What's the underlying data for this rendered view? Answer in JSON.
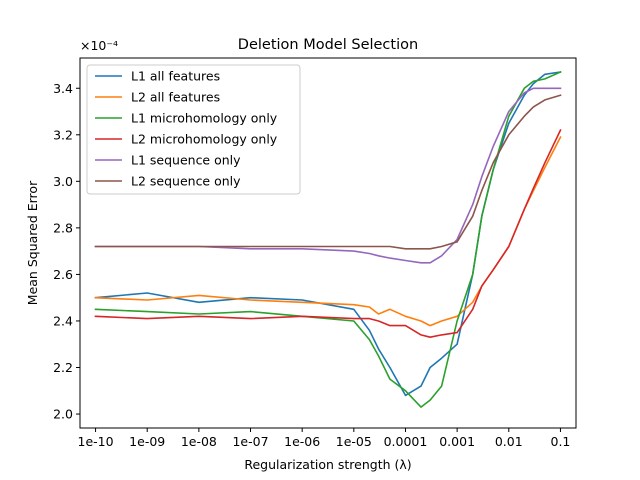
{
  "chart_data": {
    "type": "line",
    "title": "Deletion Model Selection",
    "xlabel": "Regularization strength (λ)",
    "ylabel": "Mean Squared Error",
    "y_offset_text": "×10⁻⁴",
    "x_scale": "log",
    "xlim": [
      5e-11,
      0.2
    ],
    "ylim": [
      1.94,
      3.53
    ],
    "x_ticks": [
      1e-10,
      1e-09,
      1e-08,
      1e-07,
      1e-06,
      1e-05,
      0.0001,
      0.001,
      0.01,
      0.1
    ],
    "x_tick_labels": [
      "1e-10",
      "1e-09",
      "1e-08",
      "1e-07",
      "1e-06",
      "1e-05",
      "0.0001",
      "0.001",
      "0.01",
      "0.1"
    ],
    "y_ticks": [
      2.0,
      2.2,
      2.4,
      2.6,
      2.8,
      3.0,
      3.2,
      3.4
    ],
    "y_tick_labels": [
      "2.0",
      "2.2",
      "2.4",
      "2.6",
      "2.8",
      "3.0",
      "3.2",
      "3.4"
    ],
    "grid": false,
    "legend_position": "top-left",
    "x": [
      1e-10,
      1e-09,
      1e-08,
      1e-07,
      1e-06,
      1e-05,
      2e-05,
      3e-05,
      5e-05,
      0.0001,
      0.0002,
      0.0003,
      0.0005,
      0.001,
      0.002,
      0.003,
      0.005,
      0.01,
      0.02,
      0.03,
      0.05,
      0.1
    ],
    "series": [
      {
        "name": "L1 all features",
        "color": "#1f77b4",
        "values": [
          2.5,
          2.52,
          2.48,
          2.5,
          2.49,
          2.45,
          2.36,
          2.28,
          2.2,
          2.08,
          2.12,
          2.2,
          2.24,
          2.3,
          2.6,
          2.85,
          3.05,
          3.25,
          3.37,
          3.42,
          3.46,
          3.47
        ]
      },
      {
        "name": "L2 all features",
        "color": "#ff7f0e",
        "values": [
          2.5,
          2.49,
          2.51,
          2.49,
          2.48,
          2.47,
          2.46,
          2.43,
          2.45,
          2.42,
          2.4,
          2.38,
          2.4,
          2.42,
          2.48,
          2.55,
          2.62,
          2.72,
          2.88,
          2.96,
          3.06,
          3.19
        ]
      },
      {
        "name": "L1 microhomology only",
        "color": "#2ca02c",
        "values": [
          2.45,
          2.44,
          2.43,
          2.44,
          2.42,
          2.4,
          2.32,
          2.25,
          2.15,
          2.1,
          2.03,
          2.06,
          2.12,
          2.4,
          2.6,
          2.85,
          3.05,
          3.28,
          3.4,
          3.43,
          3.44,
          3.47
        ]
      },
      {
        "name": "L2 microhomology only",
        "color": "#d62728",
        "values": [
          2.42,
          2.41,
          2.42,
          2.41,
          2.42,
          2.41,
          2.41,
          2.4,
          2.38,
          2.38,
          2.34,
          2.33,
          2.34,
          2.35,
          2.45,
          2.55,
          2.62,
          2.72,
          2.88,
          2.97,
          3.08,
          3.22
        ]
      },
      {
        "name": "L1 sequence only",
        "color": "#9467bd",
        "values": [
          2.72,
          2.72,
          2.72,
          2.71,
          2.71,
          2.7,
          2.69,
          2.68,
          2.67,
          2.66,
          2.65,
          2.65,
          2.68,
          2.75,
          2.9,
          3.02,
          3.15,
          3.3,
          3.38,
          3.4,
          3.4,
          3.4
        ]
      },
      {
        "name": "L2 sequence only",
        "color": "#8c564b",
        "values": [
          2.72,
          2.72,
          2.72,
          2.72,
          2.72,
          2.72,
          2.72,
          2.72,
          2.72,
          2.71,
          2.71,
          2.71,
          2.72,
          2.74,
          2.85,
          2.96,
          3.08,
          3.2,
          3.28,
          3.32,
          3.35,
          3.37
        ]
      }
    ]
  }
}
